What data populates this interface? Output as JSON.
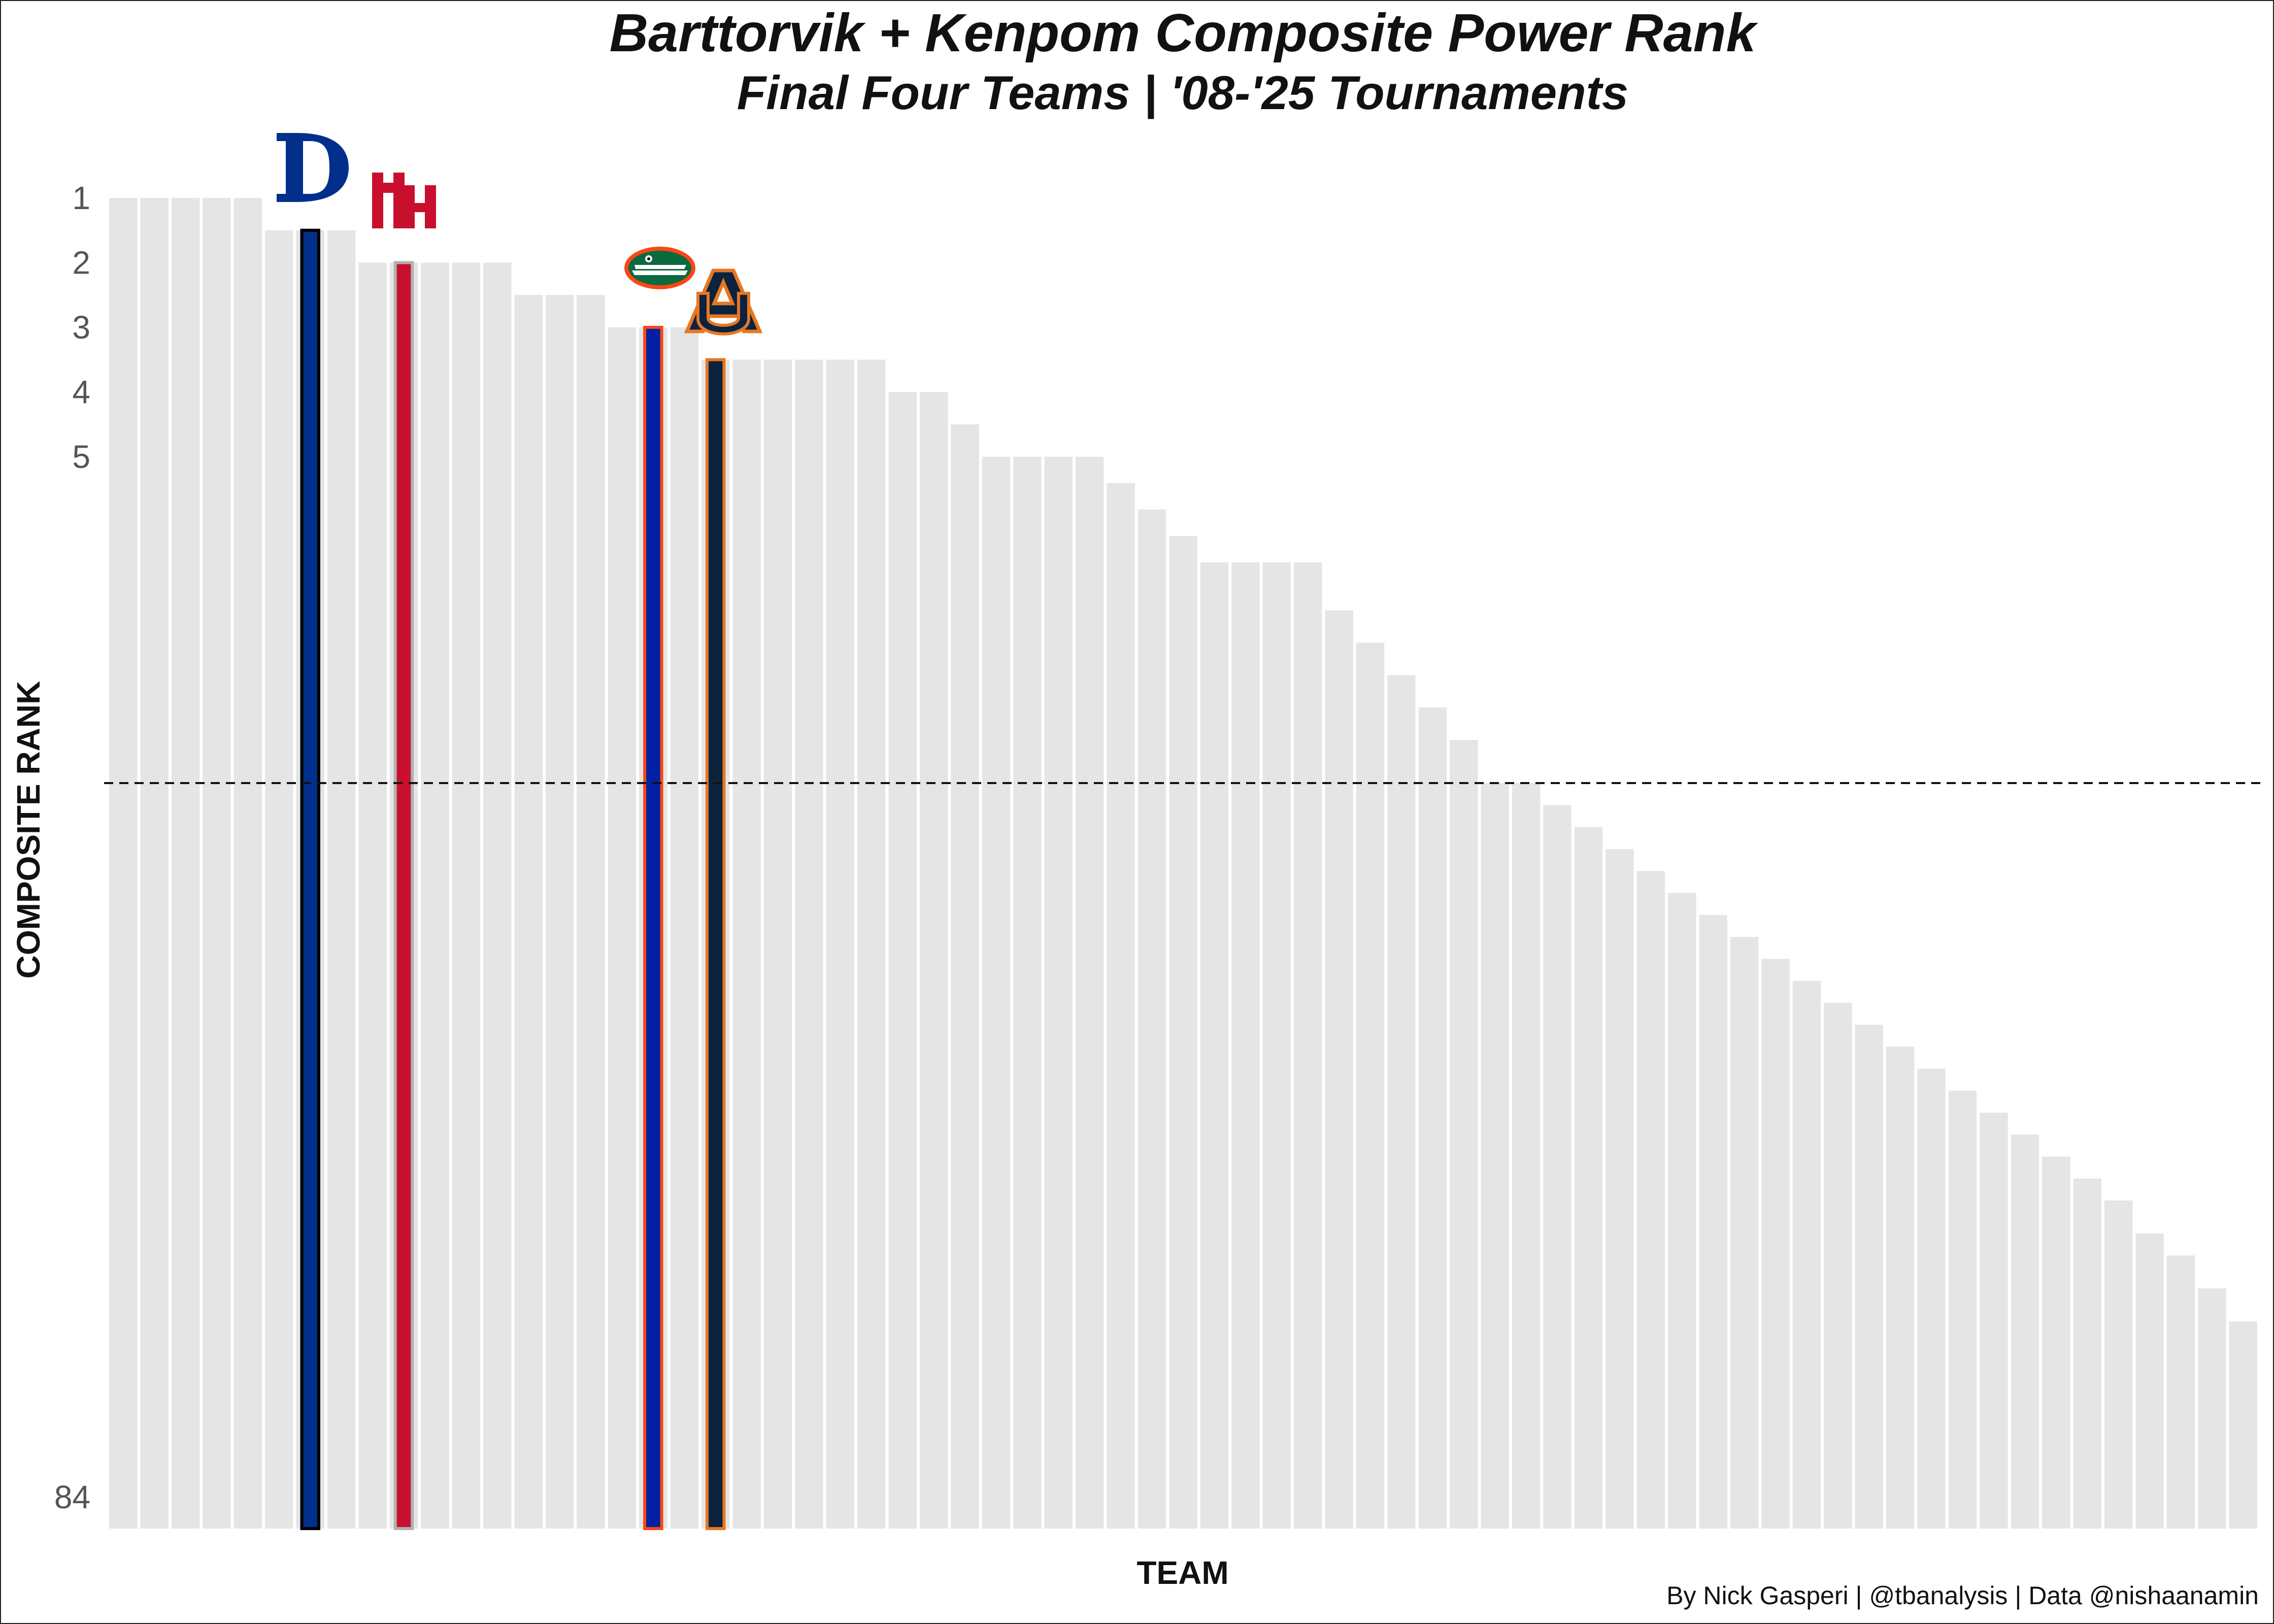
{
  "chart_data": {
    "type": "bar",
    "title": "Barttorvik + Kenpom Composite Power Rank",
    "subtitle": "Final Four Teams | '08-'25 Tournaments",
    "xlabel": "TEAM",
    "ylabel": "COMPOSITE RANK",
    "caption": "By Nick Gasperi | @tbanalysis | Data @nishaanamin",
    "y_axis": {
      "reversed": true,
      "ylim": [
        1,
        84
      ],
      "tick_labels": [
        "1",
        "2",
        "3",
        "4",
        "5",
        "84"
      ],
      "tick_values": [
        1,
        2,
        3,
        4,
        5,
        84
      ]
    },
    "reference_line": {
      "value": 19,
      "style": "dashed"
    },
    "grid": false,
    "values": [
      1.0,
      1.0,
      1.0,
      1.0,
      1.0,
      1.5,
      1.5,
      1.5,
      2.0,
      2.0,
      2.0,
      2.0,
      2.0,
      2.5,
      2.5,
      2.5,
      3.0,
      3.0,
      3.0,
      3.5,
      3.5,
      3.5,
      3.5,
      3.5,
      3.5,
      4.0,
      4.0,
      4.5,
      5.0,
      5.0,
      5.0,
      5.0,
      6.0,
      7.0,
      8.0,
      9.0,
      9.0,
      9.0,
      9.0,
      11.0,
      12.5,
      14.0,
      15.5,
      17.0,
      19.0,
      19.0,
      21.0,
      23.0,
      25.0,
      27.0,
      29.0,
      31.0,
      33.0,
      35.0,
      37.0,
      39.0,
      41.0,
      43.0,
      45.0,
      47.0,
      49.0,
      51.0,
      53.0,
      55.0,
      57.0,
      60.0,
      62.0,
      65.0,
      68.0
    ],
    "highlighted": [
      {
        "team": "Duke",
        "index": 6,
        "value": 1.5,
        "fill": "#012F8B",
        "stroke": "#000000"
      },
      {
        "team": "Houston",
        "index": 9,
        "value": 2.0,
        "fill": "#C8102E",
        "stroke": "#B0B0B0"
      },
      {
        "team": "Florida",
        "index": 17,
        "value": 3.0,
        "fill": "#0021A5",
        "stroke": "#FA4616"
      },
      {
        "team": "Auburn",
        "index": 19,
        "value": 3.5,
        "fill": "#0C2340",
        "stroke": "#E87722"
      }
    ],
    "colors": {
      "bar": "#E5E5E5",
      "reference_line": "#111111"
    }
  },
  "logos": {
    "duke": "duke-logo",
    "houston": "houston-logo",
    "florida": "florida-gator-logo",
    "auburn": "auburn-logo"
  }
}
